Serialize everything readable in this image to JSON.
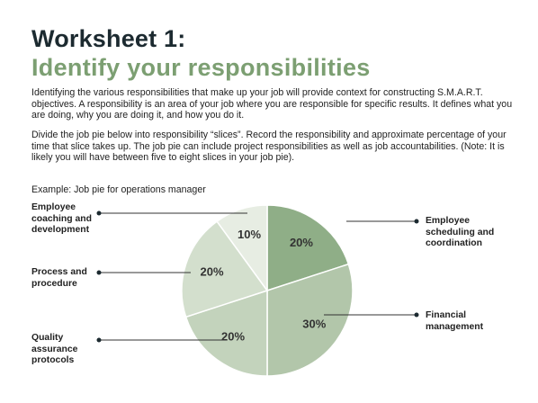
{
  "header": {
    "title": "Worksheet 1:",
    "subtitle": "Identify your responsibilities"
  },
  "paragraphs": [
    "Identifying the various responsibilities that make up your job will provide context for constructing S.M.A.R.T. objectives. A responsibility is an area of your job where you are responsible for specific results. It defines what you are doing, why you are doing it, and how you do it.",
    "Divide the job pie below into responsibility “slices”. Record the responsibility and approximate percentage of your time that slice takes up. The job pie can include project responsibilities as well as job accountabilities. (Note: It is likely you will have between five to eight slices in your job pie)."
  ],
  "chart_data": {
    "type": "pie",
    "title": "Example: Job pie for operations manager",
    "categories": [
      "Employee scheduling and coordination",
      "Financial management",
      "Quality assurance protocols",
      "Process and procedure",
      "Employee coaching and development"
    ],
    "values": [
      20,
      30,
      20,
      20,
      10
    ],
    "value_labels": [
      "20%",
      "30%",
      "20%",
      "20%",
      "10%"
    ],
    "colors": [
      "#8fae87",
      "#b2c6aa",
      "#c3d3bc",
      "#d3dfcd",
      "#e7ede3"
    ]
  }
}
